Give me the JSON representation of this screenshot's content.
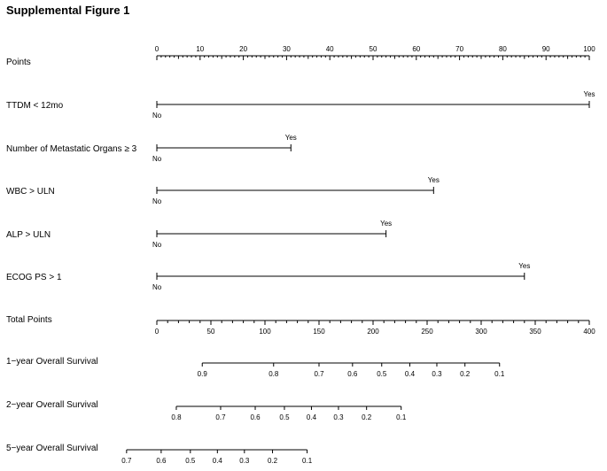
{
  "title": "Supplemental Figure 1",
  "chart_data": {
    "type": "nomogram",
    "title": "Supplemental Figure 1",
    "points_scale": {
      "label": "Points",
      "range": [
        0,
        100
      ],
      "ticks": [
        0,
        10,
        20,
        30,
        40,
        50,
        60,
        70,
        80,
        90,
        100
      ],
      "minor_step": 1,
      "mid_step": 5
    },
    "predictors": [
      {
        "label": "TTDM < 12mo",
        "levels": [
          {
            "name": "No",
            "points": 0
          },
          {
            "name": "Yes",
            "points": 100
          }
        ]
      },
      {
        "label": "Number of Metastatic Organs ≥ 3",
        "levels": [
          {
            "name": "No",
            "points": 0
          },
          {
            "name": "Yes",
            "points": 31
          }
        ]
      },
      {
        "label": "WBC > ULN",
        "levels": [
          {
            "name": "No",
            "points": 0
          },
          {
            "name": "Yes",
            "points": 64
          }
        ]
      },
      {
        "label": "ALP > ULN",
        "levels": [
          {
            "name": "No",
            "points": 0
          },
          {
            "name": "Yes",
            "points": 53
          }
        ]
      },
      {
        "label": "ECOG PS > 1",
        "levels": [
          {
            "name": "No",
            "points": 0
          },
          {
            "name": "Yes",
            "points": 85
          }
        ]
      }
    ],
    "total_points": {
      "label": "Total Points",
      "range": [
        0,
        400
      ],
      "ticks": [
        0,
        50,
        100,
        150,
        200,
        250,
        300,
        350,
        400
      ],
      "minor_step": 10
    },
    "survival_axes": [
      {
        "label": "1−year Overall Survival",
        "ticks": [
          {
            "label": "0.9",
            "total_points": 42
          },
          {
            "label": "0.8",
            "total_points": 108
          },
          {
            "label": "0.7",
            "total_points": 150
          },
          {
            "label": "0.6",
            "total_points": 181
          },
          {
            "label": "0.5",
            "total_points": 208
          },
          {
            "label": "0.4",
            "total_points": 234
          },
          {
            "label": "0.3",
            "total_points": 259
          },
          {
            "label": "0.2",
            "total_points": 285
          },
          {
            "label": "0.1",
            "total_points": 317
          }
        ]
      },
      {
        "label": "2−year Overall Survival",
        "ticks": [
          {
            "label": "0.8",
            "total_points": 18
          },
          {
            "label": "0.7",
            "total_points": 59
          },
          {
            "label": "0.6",
            "total_points": 91
          },
          {
            "label": "0.5",
            "total_points": 118
          },
          {
            "label": "0.4",
            "total_points": 143
          },
          {
            "label": "0.3",
            "total_points": 168
          },
          {
            "label": "0.2",
            "total_points": 194
          },
          {
            "label": "0.1",
            "total_points": 226
          }
        ]
      },
      {
        "label": "5−year Overall Survival",
        "ticks": [
          {
            "label": "0.7",
            "total_points": -28
          },
          {
            "label": "0.6",
            "total_points": 4
          },
          {
            "label": "0.5",
            "total_points": 31
          },
          {
            "label": "0.4",
            "total_points": 56
          },
          {
            "label": "0.3",
            "total_points": 81
          },
          {
            "label": "0.2",
            "total_points": 107
          },
          {
            "label": "0.1",
            "total_points": 139
          }
        ]
      }
    ]
  }
}
